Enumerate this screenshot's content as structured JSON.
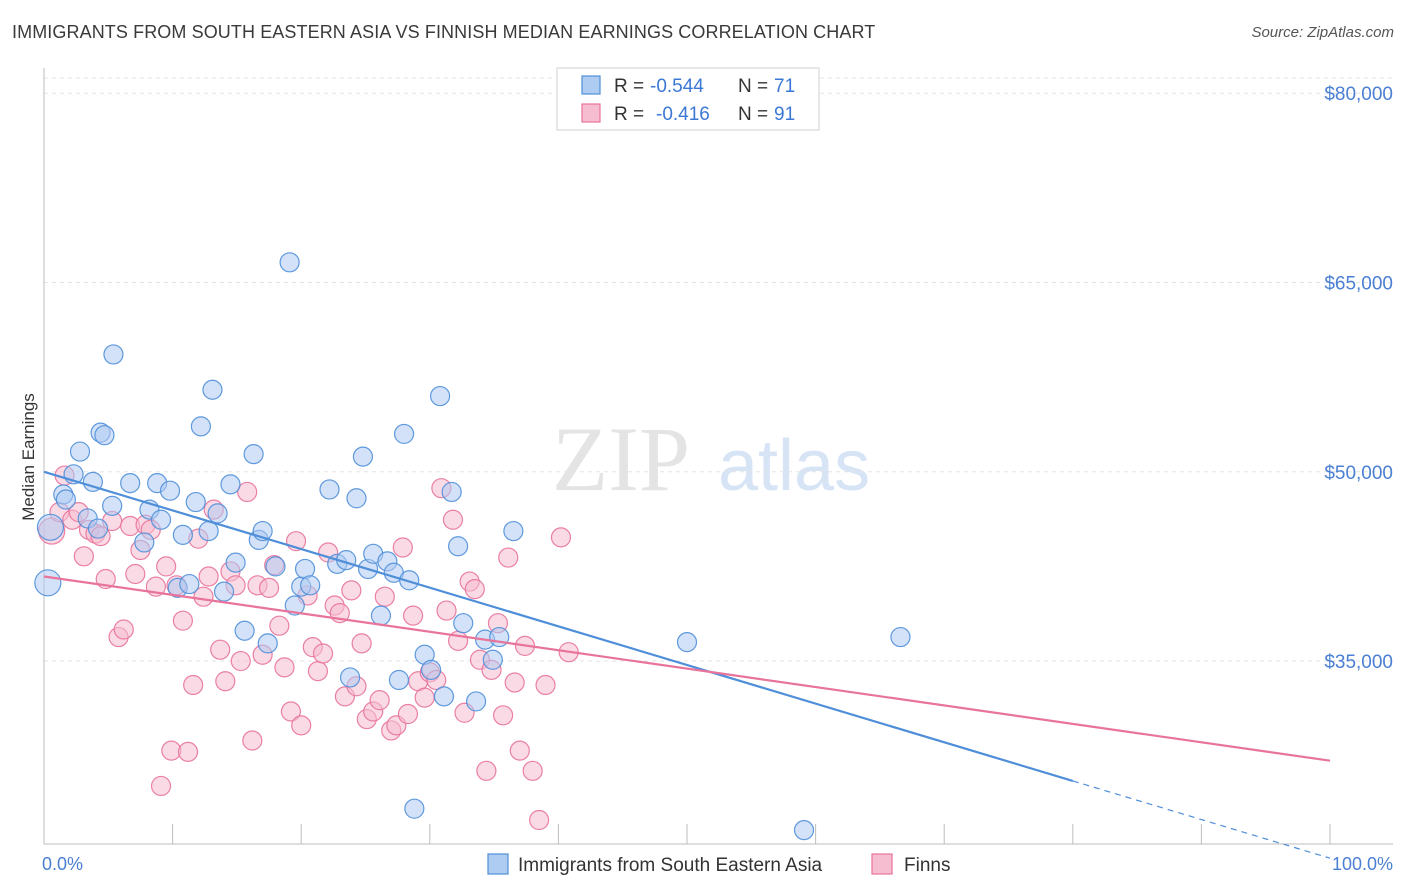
{
  "title": "IMMIGRANTS FROM SOUTH EASTERN ASIA VS FINNISH MEDIAN EARNINGS CORRELATION CHART",
  "source": "Source: ZipAtlas.com",
  "watermark": {
    "part1": "ZIP",
    "part2": "atlas"
  },
  "colors": {
    "blue": "#4f8fd9",
    "blue_fill": "#aecbf2",
    "pink": "#e8739b",
    "pink_fill": "#f6bcd0",
    "axis_label": "#4a7fd4",
    "grid": "#d9d9d9"
  },
  "legend_top": {
    "rows": [
      {
        "r_label": "R = ",
        "r_value": "-0.544",
        "n_label": "N = ",
        "n_value": "71"
      },
      {
        "r_label": "R = ",
        "r_value": "-0.416",
        "n_label": "N = ",
        "n_value": "91"
      }
    ]
  },
  "chart_data": {
    "type": "scatter",
    "xlabel": "",
    "ylabel": "Median Earnings",
    "xlim": [
      0,
      100
    ],
    "ylim": [
      20500,
      82000
    ],
    "x_tick_labels": [
      "0.0%",
      "100.0%"
    ],
    "y_ticks": [
      35000,
      50000,
      65000,
      80000
    ],
    "y_tick_labels": [
      "$35,000",
      "$50,000",
      "$65,000",
      "$80,000"
    ],
    "legend_position": "bottom",
    "grid": true,
    "series": [
      {
        "name": "Immigrants from South Eastern Asia",
        "color": "#4f8fd9",
        "trend": {
          "x": [
            0,
            80
          ],
          "y": [
            50000,
            25500
          ],
          "dashed_to_x": 100
        },
        "points": [
          [
            0.3,
            41200
          ],
          [
            0.5,
            45600
          ],
          [
            1.5,
            48200
          ],
          [
            1.7,
            47800
          ],
          [
            2.3,
            49800
          ],
          [
            2.8,
            51600
          ],
          [
            3.4,
            46300
          ],
          [
            3.8,
            49200
          ],
          [
            4.2,
            45500
          ],
          [
            4.4,
            53100
          ],
          [
            4.7,
            52900
          ],
          [
            5.3,
            47300
          ],
          [
            5.4,
            59300
          ],
          [
            6.7,
            49100
          ],
          [
            7.8,
            44400
          ],
          [
            8.2,
            47000
          ],
          [
            8.8,
            49100
          ],
          [
            9.1,
            46200
          ],
          [
            9.8,
            48500
          ],
          [
            10.4,
            40800
          ],
          [
            10.8,
            45000
          ],
          [
            11.3,
            41100
          ],
          [
            11.8,
            47600
          ],
          [
            12.2,
            53600
          ],
          [
            12.8,
            45300
          ],
          [
            13.1,
            56500
          ],
          [
            13.5,
            46700
          ],
          [
            14.0,
            40500
          ],
          [
            14.5,
            49000
          ],
          [
            14.9,
            42800
          ],
          [
            15.6,
            37400
          ],
          [
            16.3,
            51400
          ],
          [
            16.7,
            44600
          ],
          [
            17.0,
            45300
          ],
          [
            17.4,
            36400
          ],
          [
            18.0,
            42500
          ],
          [
            19.1,
            66600
          ],
          [
            19.5,
            39400
          ],
          [
            20.0,
            40900
          ],
          [
            20.3,
            42300
          ],
          [
            20.7,
            41000
          ],
          [
            22.2,
            48600
          ],
          [
            22.8,
            42700
          ],
          [
            23.5,
            43000
          ],
          [
            23.8,
            33700
          ],
          [
            24.3,
            47900
          ],
          [
            24.8,
            51200
          ],
          [
            25.2,
            42300
          ],
          [
            25.6,
            43500
          ],
          [
            26.2,
            38600
          ],
          [
            26.7,
            42900
          ],
          [
            27.2,
            42000
          ],
          [
            27.6,
            33500
          ],
          [
            28.0,
            53000
          ],
          [
            28.4,
            41400
          ],
          [
            28.8,
            23300
          ],
          [
            29.6,
            35500
          ],
          [
            30.1,
            34300
          ],
          [
            30.8,
            56000
          ],
          [
            31.1,
            32200
          ],
          [
            31.7,
            48400
          ],
          [
            32.2,
            44100
          ],
          [
            32.6,
            38000
          ],
          [
            33.6,
            31800
          ],
          [
            34.3,
            36700
          ],
          [
            34.9,
            35100
          ],
          [
            35.4,
            36900
          ],
          [
            36.5,
            45300
          ],
          [
            50.0,
            36500
          ],
          [
            59.1,
            21600
          ],
          [
            66.6,
            36900
          ]
        ]
      },
      {
        "name": "Finns",
        "color": "#e8739b",
        "trend": {
          "x": [
            0,
            100
          ],
          "y": [
            41700,
            27100
          ]
        },
        "points": [
          [
            0.6,
            45300
          ],
          [
            1.2,
            46800
          ],
          [
            1.6,
            49700
          ],
          [
            2.2,
            46200
          ],
          [
            2.7,
            46800
          ],
          [
            3.1,
            43300
          ],
          [
            3.5,
            45400
          ],
          [
            4.0,
            45100
          ],
          [
            4.4,
            44900
          ],
          [
            4.8,
            41500
          ],
          [
            5.3,
            46100
          ],
          [
            5.8,
            36900
          ],
          [
            6.2,
            37500
          ],
          [
            6.7,
            45700
          ],
          [
            7.1,
            41900
          ],
          [
            7.5,
            43800
          ],
          [
            7.9,
            45800
          ],
          [
            8.3,
            45400
          ],
          [
            8.7,
            40900
          ],
          [
            9.1,
            25100
          ],
          [
            9.5,
            42500
          ],
          [
            9.9,
            27900
          ],
          [
            10.3,
            41000
          ],
          [
            10.8,
            38200
          ],
          [
            11.2,
            27800
          ],
          [
            11.6,
            33100
          ],
          [
            12.0,
            44700
          ],
          [
            12.4,
            40100
          ],
          [
            12.8,
            41700
          ],
          [
            13.2,
            47000
          ],
          [
            13.7,
            35900
          ],
          [
            14.1,
            33400
          ],
          [
            14.5,
            42100
          ],
          [
            14.9,
            41000
          ],
          [
            15.3,
            35000
          ],
          [
            15.8,
            48400
          ],
          [
            16.2,
            28700
          ],
          [
            16.6,
            41000
          ],
          [
            17.0,
            35500
          ],
          [
            17.5,
            40800
          ],
          [
            17.9,
            42600
          ],
          [
            18.3,
            37800
          ],
          [
            18.7,
            34500
          ],
          [
            19.2,
            31000
          ],
          [
            19.6,
            44500
          ],
          [
            20.0,
            29900
          ],
          [
            20.5,
            40200
          ],
          [
            20.9,
            36100
          ],
          [
            21.3,
            34200
          ],
          [
            21.7,
            35600
          ],
          [
            22.1,
            43600
          ],
          [
            22.6,
            39400
          ],
          [
            23.0,
            38800
          ],
          [
            23.4,
            32200
          ],
          [
            23.9,
            40600
          ],
          [
            24.3,
            33000
          ],
          [
            24.7,
            36400
          ],
          [
            25.1,
            30400
          ],
          [
            25.6,
            31000
          ],
          [
            26.1,
            31900
          ],
          [
            26.5,
            40100
          ],
          [
            27.0,
            29500
          ],
          [
            27.4,
            29900
          ],
          [
            27.9,
            44000
          ],
          [
            28.3,
            30800
          ],
          [
            28.7,
            38600
          ],
          [
            29.1,
            33400
          ],
          [
            29.6,
            32100
          ],
          [
            30.0,
            34100
          ],
          [
            30.5,
            33500
          ],
          [
            30.9,
            48700
          ],
          [
            31.3,
            39000
          ],
          [
            31.8,
            46200
          ],
          [
            32.2,
            36600
          ],
          [
            32.7,
            30900
          ],
          [
            33.1,
            41300
          ],
          [
            33.5,
            40700
          ],
          [
            33.9,
            35100
          ],
          [
            34.4,
            26300
          ],
          [
            34.8,
            34300
          ],
          [
            35.3,
            38000
          ],
          [
            35.7,
            30700
          ],
          [
            36.1,
            43200
          ],
          [
            36.6,
            33300
          ],
          [
            37.0,
            27900
          ],
          [
            37.4,
            36200
          ],
          [
            38.0,
            26300
          ],
          [
            38.5,
            22400
          ],
          [
            39.0,
            33100
          ],
          [
            40.2,
            44800
          ],
          [
            40.8,
            35700
          ]
        ]
      }
    ]
  }
}
